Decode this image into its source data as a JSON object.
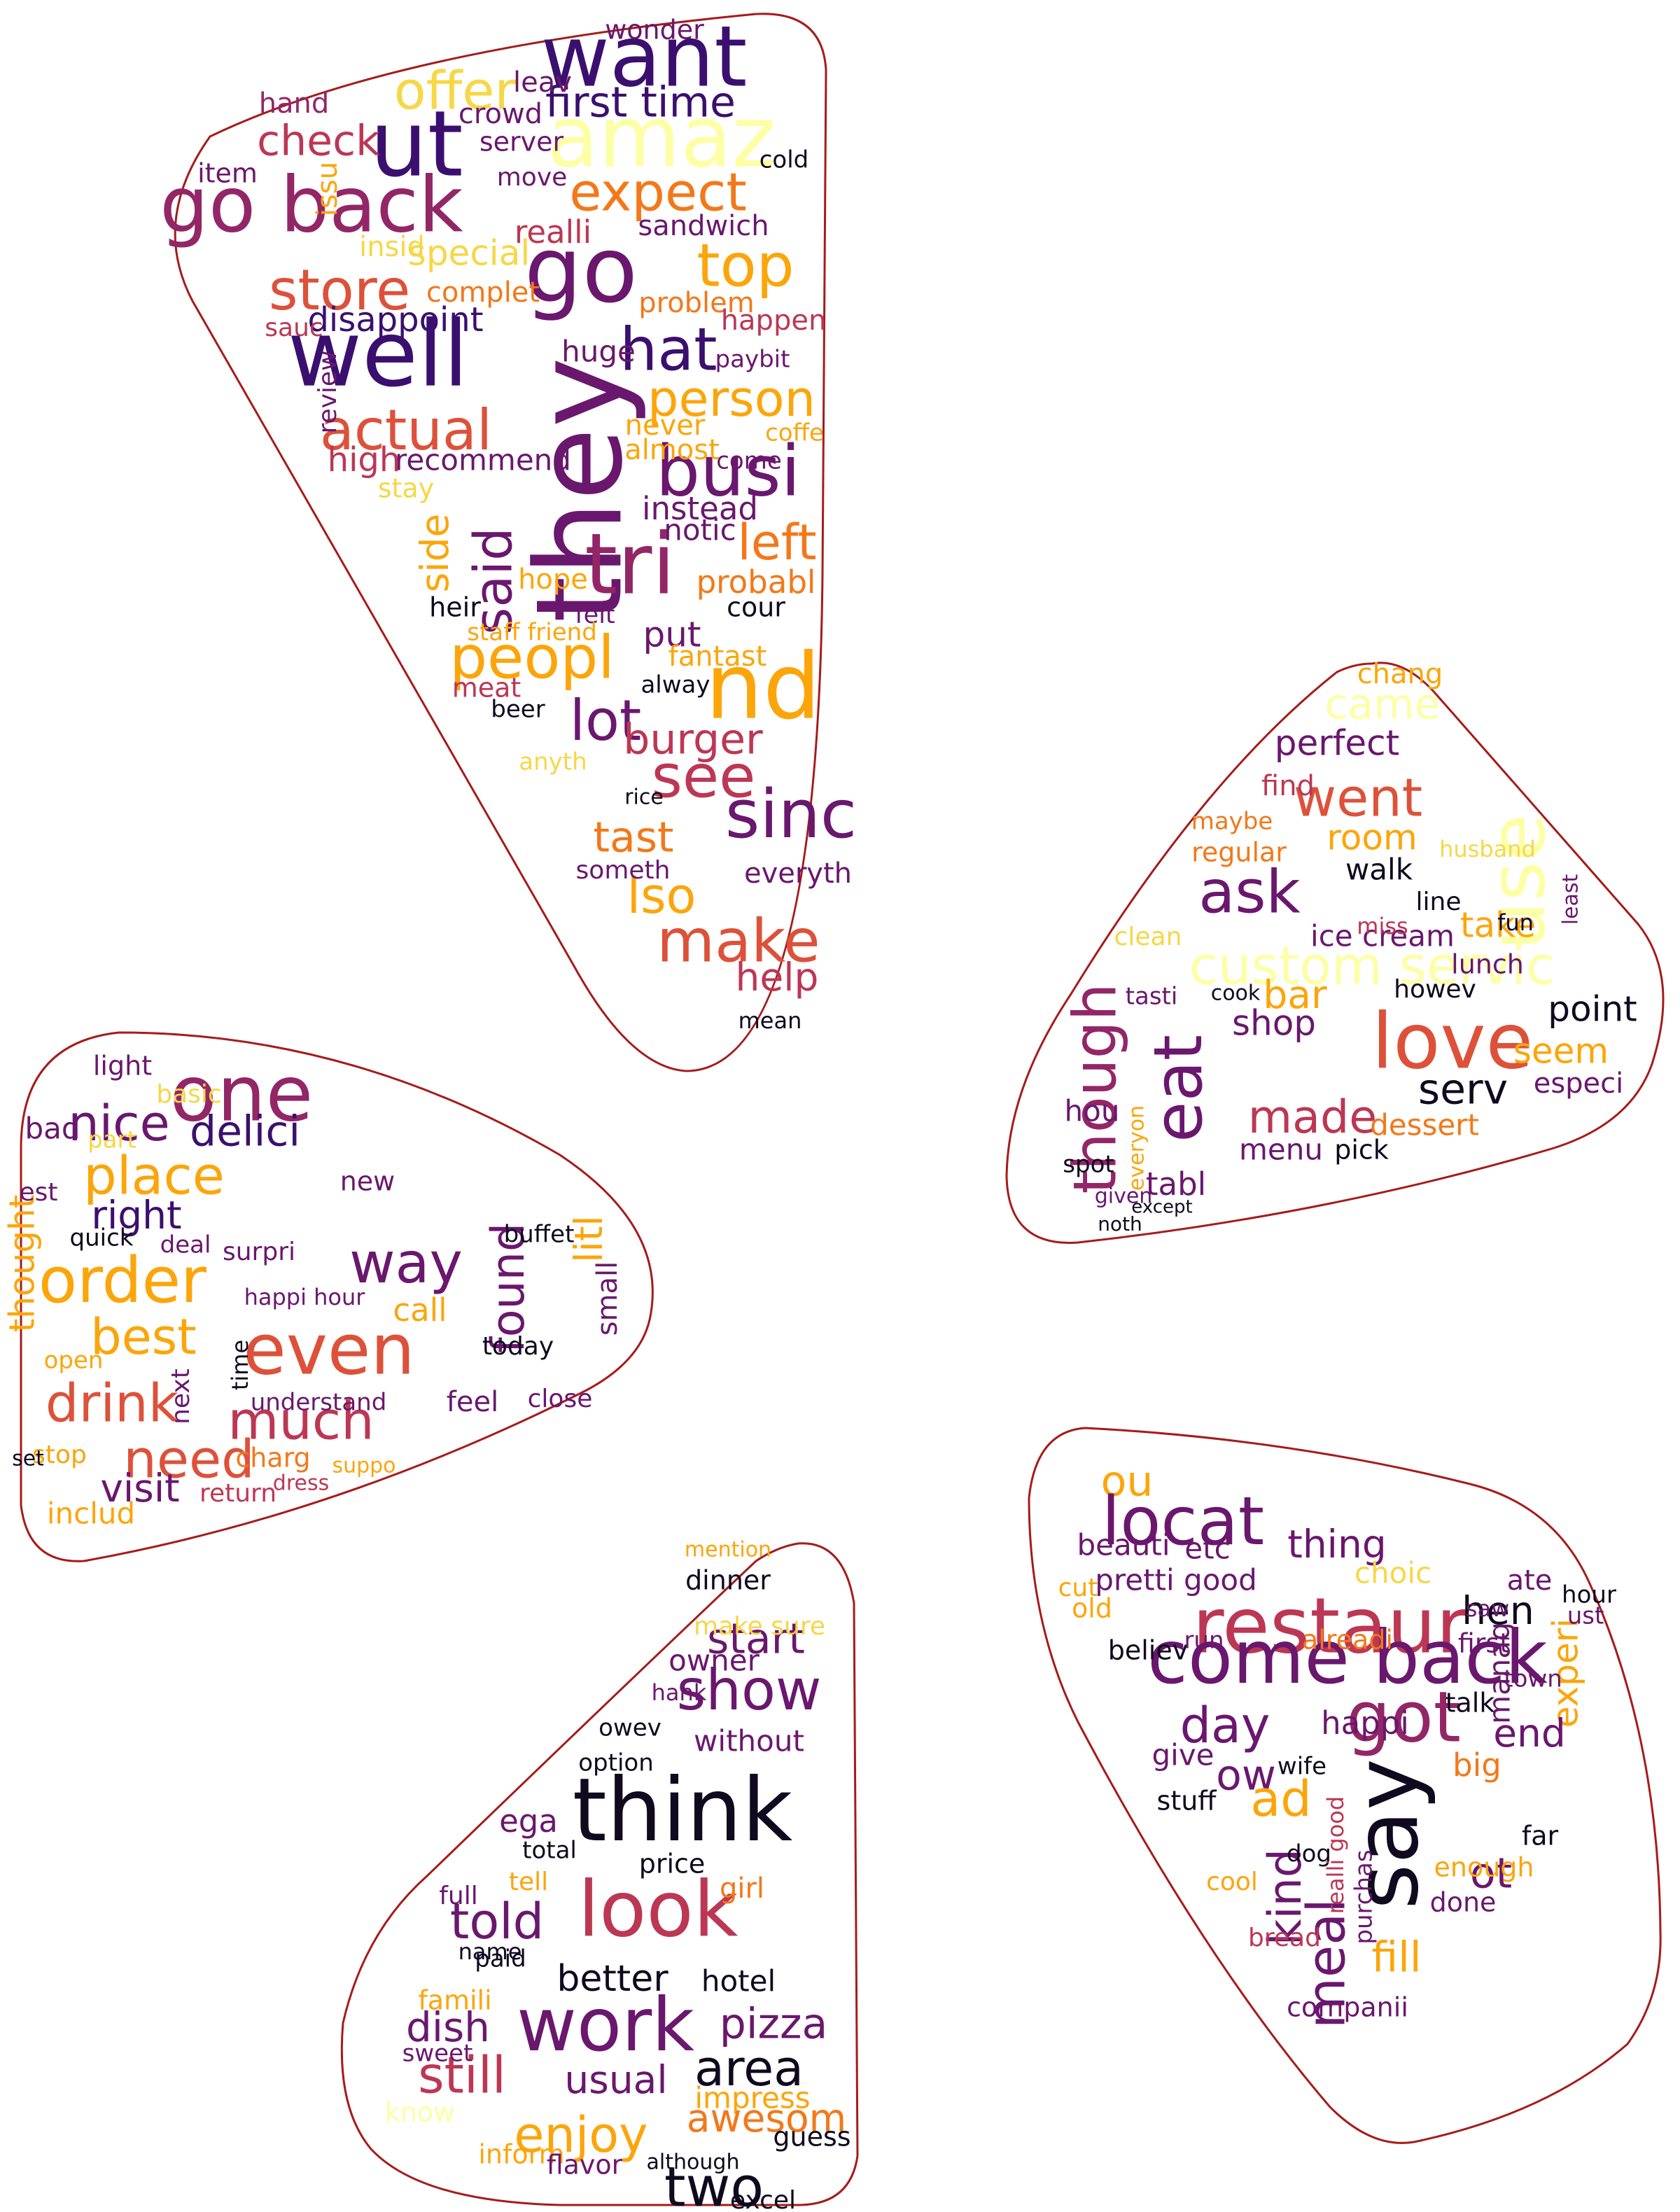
{
  "palette": {
    "black": "#0f0a1e",
    "deep_purple": "#3b0f6f",
    "purple": "#6a176e",
    "magenta": "#932667",
    "crimson": "#bc3754",
    "red_orange": "#dd513a",
    "orange": "#f37819",
    "amber": "#fca50a",
    "yellow": "#f6d746",
    "pale_yellow": "#fcffa4",
    "outline": "#a61b1b"
  },
  "clouds": [
    {
      "shape": "wedge-top-left",
      "words": [
        {
          "text": "want",
          "color": "deep_purple"
        },
        {
          "text": "amaz",
          "color": "pale_yellow"
        },
        {
          "text": "ut",
          "color": "deep_purple"
        },
        {
          "text": "go back",
          "color": "magenta"
        },
        {
          "text": "check",
          "color": "crimson"
        },
        {
          "text": "offer",
          "color": "yellow"
        },
        {
          "text": "first time",
          "color": "deep_purple"
        },
        {
          "text": "expect",
          "color": "orange"
        },
        {
          "text": "go",
          "color": "purple"
        },
        {
          "text": "top",
          "color": "amber"
        },
        {
          "text": "store",
          "color": "red_orange"
        },
        {
          "text": "well",
          "color": "deep_purple"
        },
        {
          "text": "hat",
          "color": "deep_purple"
        },
        {
          "text": "they",
          "color": "purple"
        },
        {
          "text": "actual",
          "color": "red_orange"
        },
        {
          "text": "person",
          "color": "amber"
        },
        {
          "text": "busi",
          "color": "purple"
        },
        {
          "text": "tri",
          "color": "magenta"
        },
        {
          "text": "said",
          "color": "purple"
        },
        {
          "text": "peopl",
          "color": "amber"
        },
        {
          "text": "nd",
          "color": "amber"
        },
        {
          "text": "lot",
          "color": "purple"
        },
        {
          "text": "see",
          "color": "crimson"
        },
        {
          "text": "sinc",
          "color": "purple"
        },
        {
          "text": "make",
          "color": "red_orange"
        },
        {
          "text": "help",
          "color": "crimson"
        },
        {
          "text": "lso",
          "color": "amber"
        },
        {
          "text": "tast",
          "color": "orange"
        },
        {
          "text": "burger",
          "color": "crimson"
        },
        {
          "text": "special",
          "color": "yellow"
        },
        {
          "text": "disappoint",
          "color": "deep_purple"
        },
        {
          "text": "sandwich",
          "color": "purple"
        },
        {
          "text": "realli",
          "color": "crimson"
        },
        {
          "text": "problem",
          "color": "orange"
        },
        {
          "text": "left",
          "color": "orange"
        },
        {
          "text": "probabl",
          "color": "orange"
        },
        {
          "text": "put",
          "color": "purple"
        },
        {
          "text": "fantast",
          "color": "amber"
        },
        {
          "text": "everyth",
          "color": "purple"
        },
        {
          "text": "come",
          "color": "purple"
        },
        {
          "text": "recommend",
          "color": "purple"
        },
        {
          "text": "high",
          "color": "crimson"
        },
        {
          "text": "item",
          "color": "purple"
        },
        {
          "text": "hand",
          "color": "magenta"
        },
        {
          "text": "crowd",
          "color": "purple"
        },
        {
          "text": "server",
          "color": "purple"
        },
        {
          "text": "move",
          "color": "purple"
        },
        {
          "text": "leav",
          "color": "purple"
        },
        {
          "text": "instead",
          "color": "purple"
        },
        {
          "text": "never",
          "color": "amber"
        },
        {
          "text": "almost",
          "color": "amber"
        },
        {
          "text": "hope",
          "color": "amber"
        },
        {
          "text": "heir",
          "color": "black"
        },
        {
          "text": "felt",
          "color": "purple"
        },
        {
          "text": "cour",
          "color": "black"
        },
        {
          "text": "alway",
          "color": "black"
        },
        {
          "text": "beer",
          "color": "black"
        },
        {
          "text": "meat",
          "color": "crimson"
        },
        {
          "text": "staff friend",
          "color": "amber"
        },
        {
          "text": "huge",
          "color": "purple"
        },
        {
          "text": "paybit",
          "color": "purple"
        },
        {
          "text": "coffe",
          "color": "amber"
        },
        {
          "text": "notic",
          "color": "purple"
        },
        {
          "text": "happen",
          "color": "crimson"
        },
        {
          "text": "side",
          "color": "amber"
        },
        {
          "text": "stay",
          "color": "yellow"
        },
        {
          "text": "complet",
          "color": "orange"
        },
        {
          "text": "issu",
          "color": "amber"
        },
        {
          "text": "insid",
          "color": "yellow"
        },
        {
          "text": "sauc",
          "color": "crimson"
        },
        {
          "text": "review",
          "color": "purple"
        },
        {
          "text": "wonder",
          "color": "purple"
        },
        {
          "text": "cold",
          "color": "black"
        },
        {
          "text": "rice",
          "color": "black"
        },
        {
          "text": "anyth",
          "color": "yellow"
        },
        {
          "text": "someth",
          "color": "purple"
        },
        {
          "text": "mean",
          "color": "black"
        }
      ]
    },
    {
      "shape": "wedge-right",
      "words": [
        {
          "text": "went",
          "color": "red_orange"
        },
        {
          "text": "use",
          "color": "pale_yellow"
        },
        {
          "text": "came",
          "color": "pale_yellow"
        },
        {
          "text": "perfect",
          "color": "purple"
        },
        {
          "text": "chang",
          "color": "amber"
        },
        {
          "text": "find",
          "color": "crimson"
        },
        {
          "text": "room",
          "color": "amber"
        },
        {
          "text": "husband",
          "color": "yellow"
        },
        {
          "text": "ask",
          "color": "purple"
        },
        {
          "text": "walk",
          "color": "black"
        },
        {
          "text": "take",
          "color": "amber"
        },
        {
          "text": "ice cream",
          "color": "purple"
        },
        {
          "text": "custom servic",
          "color": "pale_yellow"
        },
        {
          "text": "love",
          "color": "red_orange"
        },
        {
          "text": "point",
          "color": "black"
        },
        {
          "text": "eat",
          "color": "purple"
        },
        {
          "text": "bar",
          "color": "amber"
        },
        {
          "text": "shop",
          "color": "purple"
        },
        {
          "text": "seem",
          "color": "amber"
        },
        {
          "text": "serv",
          "color": "black"
        },
        {
          "text": "made",
          "color": "crimson"
        },
        {
          "text": "though",
          "color": "magenta"
        },
        {
          "text": "menu",
          "color": "purple"
        },
        {
          "text": "tabl",
          "color": "purple"
        },
        {
          "text": "especi",
          "color": "purple"
        },
        {
          "text": "dessert",
          "color": "orange"
        },
        {
          "text": "pick",
          "color": "black"
        },
        {
          "text": "spot",
          "color": "black"
        },
        {
          "text": "hou",
          "color": "purple"
        },
        {
          "text": "howev",
          "color": "black"
        },
        {
          "text": "regular",
          "color": "orange"
        },
        {
          "text": "maybe",
          "color": "orange"
        },
        {
          "text": "lunch",
          "color": "purple"
        },
        {
          "text": "fun",
          "color": "black"
        },
        {
          "text": "line",
          "color": "black"
        },
        {
          "text": "miss",
          "color": "crimson"
        },
        {
          "text": "tasti",
          "color": "purple"
        },
        {
          "text": "clean",
          "color": "yellow"
        },
        {
          "text": "cook",
          "color": "black"
        },
        {
          "text": "noth",
          "color": "black"
        },
        {
          "text": "except",
          "color": "black"
        },
        {
          "text": "everyon",
          "color": "amber"
        },
        {
          "text": "given",
          "color": "purple"
        },
        {
          "text": "least",
          "color": "purple"
        }
      ]
    },
    {
      "shape": "wedge-left",
      "words": [
        {
          "text": "one",
          "color": "magenta"
        },
        {
          "text": "nice",
          "color": "purple"
        },
        {
          "text": "delici",
          "color": "deep_purple"
        },
        {
          "text": "place",
          "color": "amber"
        },
        {
          "text": "right",
          "color": "deep_purple"
        },
        {
          "text": "order",
          "color": "amber"
        },
        {
          "text": "way",
          "color": "purple"
        },
        {
          "text": "best",
          "color": "amber"
        },
        {
          "text": "even",
          "color": "red_orange"
        },
        {
          "text": "found",
          "color": "purple"
        },
        {
          "text": "call",
          "color": "amber"
        },
        {
          "text": "drink",
          "color": "red_orange"
        },
        {
          "text": "much",
          "color": "crimson"
        },
        {
          "text": "need",
          "color": "red_orange"
        },
        {
          "text": "visit",
          "color": "purple"
        },
        {
          "text": "thought",
          "color": "amber"
        },
        {
          "text": "light",
          "color": "purple"
        },
        {
          "text": "basic",
          "color": "yellow"
        },
        {
          "text": "part",
          "color": "yellow"
        },
        {
          "text": "bad",
          "color": "purple"
        },
        {
          "text": "est",
          "color": "purple"
        },
        {
          "text": "quick",
          "color": "black"
        },
        {
          "text": "deal",
          "color": "purple"
        },
        {
          "text": "surpri",
          "color": "purple"
        },
        {
          "text": "new",
          "color": "purple"
        },
        {
          "text": "buffet",
          "color": "black"
        },
        {
          "text": "today",
          "color": "black"
        },
        {
          "text": "small",
          "color": "purple"
        },
        {
          "text": "litl",
          "color": "amber"
        },
        {
          "text": "close",
          "color": "purple"
        },
        {
          "text": "feel",
          "color": "purple"
        },
        {
          "text": "understand",
          "color": "purple"
        },
        {
          "text": "charg",
          "color": "orange"
        },
        {
          "text": "return",
          "color": "crimson"
        },
        {
          "text": "includ",
          "color": "amber"
        },
        {
          "text": "open",
          "color": "amber"
        },
        {
          "text": "stop",
          "color": "amber"
        },
        {
          "text": "set",
          "color": "black"
        },
        {
          "text": "next",
          "color": "purple"
        },
        {
          "text": "time",
          "color": "black"
        },
        {
          "text": "happi hour",
          "color": "purple"
        },
        {
          "text": "dress",
          "color": "crimson"
        },
        {
          "text": "suppo",
          "color": "amber"
        }
      ]
    },
    {
      "shape": "wedge-bottom",
      "words": [
        {
          "text": "dinner",
          "color": "black"
        },
        {
          "text": "start",
          "color": "purple"
        },
        {
          "text": "show",
          "color": "purple"
        },
        {
          "text": "make sure",
          "color": "yellow"
        },
        {
          "text": "owner",
          "color": "purple"
        },
        {
          "text": "hank",
          "color": "purple"
        },
        {
          "text": "without",
          "color": "purple"
        },
        {
          "text": "owev",
          "color": "black"
        },
        {
          "text": "option",
          "color": "black"
        },
        {
          "text": "think",
          "color": "black"
        },
        {
          "text": "ega",
          "color": "purple"
        },
        {
          "text": "total",
          "color": "black"
        },
        {
          "text": "price",
          "color": "black"
        },
        {
          "text": "look",
          "color": "crimson"
        },
        {
          "text": "told",
          "color": "purple"
        },
        {
          "text": "tell",
          "color": "amber"
        },
        {
          "text": "girl",
          "color": "orange"
        },
        {
          "text": "better",
          "color": "black"
        },
        {
          "text": "hotel",
          "color": "black"
        },
        {
          "text": "famili",
          "color": "amber"
        },
        {
          "text": "dish",
          "color": "purple"
        },
        {
          "text": "work",
          "color": "purple"
        },
        {
          "text": "pizza",
          "color": "purple"
        },
        {
          "text": "area",
          "color": "black"
        },
        {
          "text": "impress",
          "color": "amber"
        },
        {
          "text": "still",
          "color": "crimson"
        },
        {
          "text": "usual",
          "color": "purple"
        },
        {
          "text": "awesom",
          "color": "orange"
        },
        {
          "text": "sweet",
          "color": "purple"
        },
        {
          "text": "enjoy",
          "color": "amber"
        },
        {
          "text": "know",
          "color": "pale_yellow"
        },
        {
          "text": "guess",
          "color": "black"
        },
        {
          "text": "inform",
          "color": "amber"
        },
        {
          "text": "two",
          "color": "black"
        },
        {
          "text": "flavor",
          "color": "purple"
        },
        {
          "text": "excel",
          "color": "black"
        },
        {
          "text": "full",
          "color": "purple"
        },
        {
          "text": "name",
          "color": "black"
        },
        {
          "text": "paid",
          "color": "black"
        },
        {
          "text": "although",
          "color": "black"
        },
        {
          "text": "mention",
          "color": "amber"
        }
      ]
    },
    {
      "shape": "wedge-bottom-right",
      "words": [
        {
          "text": "ou",
          "color": "amber"
        },
        {
          "text": "locat",
          "color": "purple"
        },
        {
          "text": "beauti",
          "color": "purple"
        },
        {
          "text": "etc",
          "color": "purple"
        },
        {
          "text": "thing",
          "color": "purple"
        },
        {
          "text": "pretti good",
          "color": "purple"
        },
        {
          "text": "restaur",
          "color": "crimson"
        },
        {
          "text": "choic",
          "color": "yellow"
        },
        {
          "text": "hen",
          "color": "black"
        },
        {
          "text": "ate",
          "color": "purple"
        },
        {
          "text": "come back",
          "color": "purple"
        },
        {
          "text": "day",
          "color": "purple"
        },
        {
          "text": "believ",
          "color": "black"
        },
        {
          "text": "alreadi",
          "color": "orange"
        },
        {
          "text": "first",
          "color": "purple"
        },
        {
          "text": "experi",
          "color": "amber"
        },
        {
          "text": "got",
          "color": "magenta"
        },
        {
          "text": "ow",
          "color": "purple"
        },
        {
          "text": "happi",
          "color": "purple"
        },
        {
          "text": "talk",
          "color": "black"
        },
        {
          "text": "manag",
          "color": "purple"
        },
        {
          "text": "give",
          "color": "purple"
        },
        {
          "text": "ad",
          "color": "amber"
        },
        {
          "text": "wife",
          "color": "black"
        },
        {
          "text": "end",
          "color": "purple"
        },
        {
          "text": "big",
          "color": "orange"
        },
        {
          "text": "stuff",
          "color": "black"
        },
        {
          "text": "say",
          "color": "black"
        },
        {
          "text": "ot",
          "color": "purple"
        },
        {
          "text": "kind",
          "color": "purple"
        },
        {
          "text": "meal",
          "color": "purple"
        },
        {
          "text": "fill",
          "color": "amber"
        },
        {
          "text": "done",
          "color": "purple"
        },
        {
          "text": "enough",
          "color": "amber"
        },
        {
          "text": "companii",
          "color": "purple"
        },
        {
          "text": "far",
          "color": "black"
        },
        {
          "text": "old",
          "color": "amber"
        },
        {
          "text": "cut",
          "color": "amber"
        },
        {
          "text": "run",
          "color": "purple"
        },
        {
          "text": "dog",
          "color": "black"
        },
        {
          "text": "cool",
          "color": "amber"
        },
        {
          "text": "bread",
          "color": "crimson"
        },
        {
          "text": "purchas",
          "color": "purple"
        },
        {
          "text": "realli good",
          "color": "crimson"
        },
        {
          "text": "town",
          "color": "purple"
        },
        {
          "text": "hour",
          "color": "black"
        },
        {
          "text": "ust",
          "color": "purple"
        },
        {
          "text": "saw",
          "color": "purple"
        }
      ]
    }
  ]
}
